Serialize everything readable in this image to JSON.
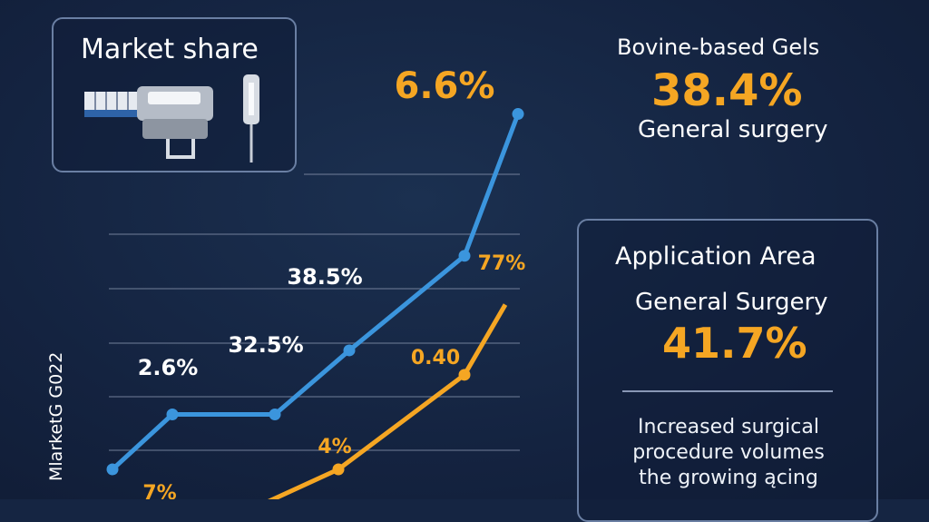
{
  "market_card": {
    "title": "Market share",
    "icon": "surgical-device-icon"
  },
  "top_stat": {
    "category": "Bovine-based Gels",
    "value": "38.4%",
    "application": "General surgery"
  },
  "application_card": {
    "title": "Application Area",
    "subtitle": "General Surgery",
    "value": "41.7%",
    "note_lines": [
      "Increased surgical",
      "procedure volumes",
      "the growing ącing",
      ""
    ]
  },
  "colors": {
    "background": "#152542",
    "blue_series": "#3b95dd",
    "orange_series": "#f5a623",
    "grid": "#7d8aa3"
  },
  "chart_data": {
    "type": "line",
    "ylabel": "MlarketG G022",
    "grid": true,
    "series": [
      {
        "color": "#3b95dd",
        "values": [
          0,
          36,
          36,
          78,
          140,
          233,
          238
        ],
        "labels": [
          "",
          "2.6%",
          "32.5%",
          "38.5%",
          "",
          "6.6%",
          ""
        ]
      },
      {
        "color": "#f5a623",
        "values": [
          -28,
          -24,
          -24,
          0,
          62,
          108,
          180
        ],
        "labels": [
          "7%",
          "",
          "",
          "4%",
          "0.40",
          "77%",
          ""
        ]
      }
    ]
  }
}
